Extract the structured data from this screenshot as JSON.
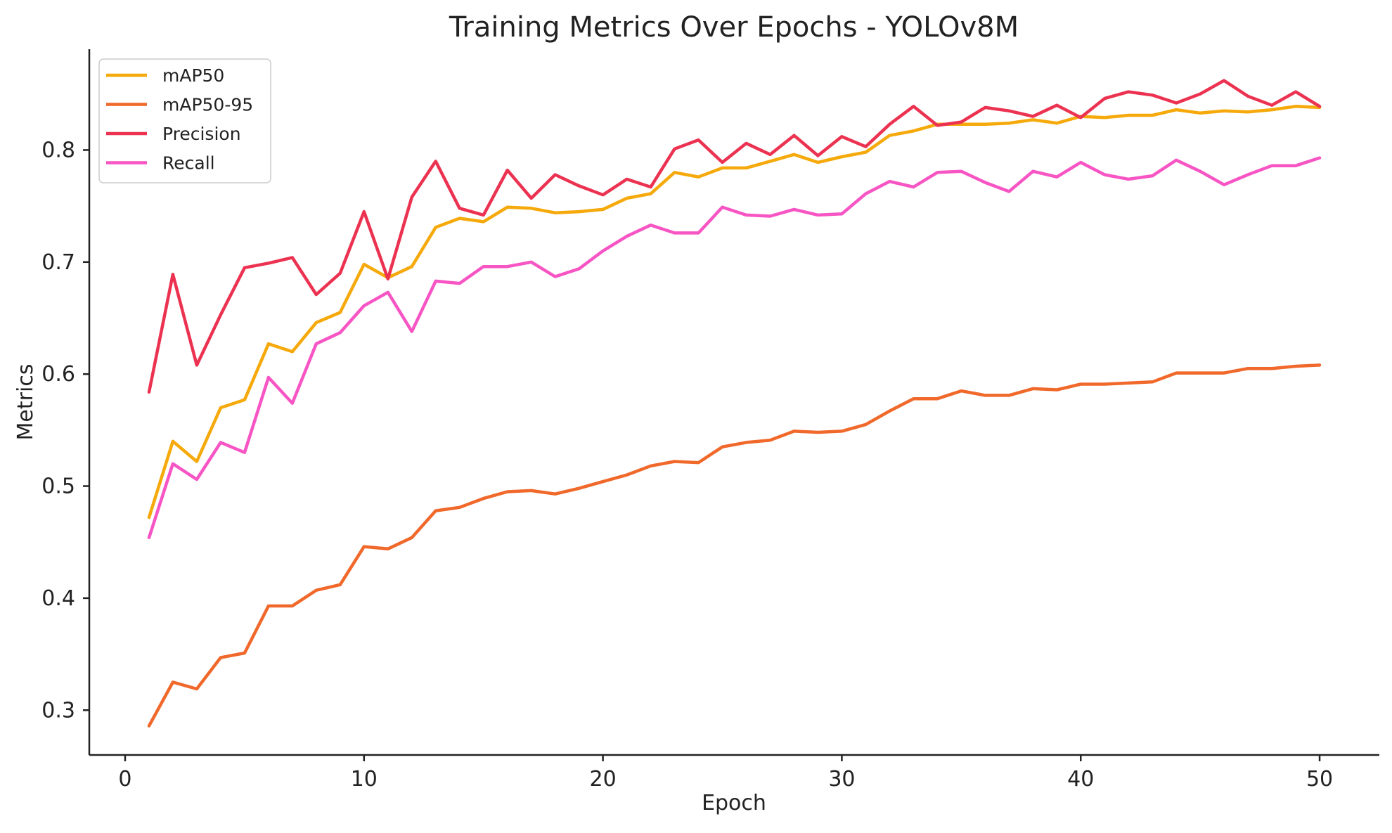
{
  "chart_data": {
    "type": "line",
    "title": "Training Metrics Over Epochs - YOLOv8M",
    "xlabel": "Epoch",
    "ylabel": "Metrics",
    "xlim": [
      -1.5,
      52.5
    ],
    "ylim": [
      0.26,
      0.89
    ],
    "xticks": [
      0,
      10,
      20,
      30,
      40,
      50
    ],
    "xtick_labels": [
      "0",
      "10",
      "20",
      "30",
      "40",
      "50"
    ],
    "yticks": [
      0.3,
      0.4,
      0.5,
      0.6,
      0.7,
      0.8
    ],
    "ytick_labels": [
      "0.3",
      "0.4",
      "0.5",
      "0.6",
      "0.7",
      "0.8"
    ],
    "grid": false,
    "legend_position": "top-left",
    "x": [
      1,
      2,
      3,
      4,
      5,
      6,
      7,
      8,
      9,
      10,
      11,
      12,
      13,
      14,
      15,
      16,
      17,
      18,
      19,
      20,
      21,
      22,
      23,
      24,
      25,
      26,
      27,
      28,
      29,
      30,
      31,
      32,
      33,
      34,
      35,
      36,
      37,
      38,
      39,
      40,
      41,
      42,
      43,
      44,
      45,
      46,
      47,
      48,
      49,
      50
    ],
    "series": [
      {
        "name": "mAP50",
        "color": "#f5a90b",
        "values": [
          0.472,
          0.54,
          0.522,
          0.57,
          0.577,
          0.627,
          0.62,
          0.646,
          0.655,
          0.698,
          0.686,
          0.696,
          0.731,
          0.739,
          0.736,
          0.749,
          0.748,
          0.744,
          0.745,
          0.747,
          0.757,
          0.761,
          0.78,
          0.776,
          0.784,
          0.784,
          0.79,
          0.796,
          0.789,
          0.794,
          0.798,
          0.813,
          0.817,
          0.823,
          0.823,
          0.823,
          0.824,
          0.827,
          0.824,
          0.83,
          0.829,
          0.831,
          0.831,
          0.836,
          0.833,
          0.835,
          0.834,
          0.836,
          0.839,
          0.838
        ]
      },
      {
        "name": "mAP50-95",
        "color": "#f0682a",
        "values": [
          0.286,
          0.325,
          0.319,
          0.347,
          0.351,
          0.393,
          0.393,
          0.407,
          0.412,
          0.446,
          0.444,
          0.454,
          0.478,
          0.481,
          0.489,
          0.495,
          0.496,
          0.493,
          0.498,
          0.504,
          0.51,
          0.518,
          0.522,
          0.521,
          0.535,
          0.539,
          0.541,
          0.549,
          0.548,
          0.549,
          0.555,
          0.567,
          0.578,
          0.578,
          0.585,
          0.581,
          0.581,
          0.587,
          0.586,
          0.591,
          0.591,
          0.592,
          0.593,
          0.601,
          0.601,
          0.601,
          0.605,
          0.605,
          0.607,
          0.608
        ]
      },
      {
        "name": "Precision",
        "color": "#ec3251",
        "values": [
          0.584,
          0.689,
          0.608,
          0.653,
          0.695,
          0.699,
          0.704,
          0.671,
          0.69,
          0.745,
          0.685,
          0.758,
          0.79,
          0.748,
          0.742,
          0.782,
          0.757,
          0.778,
          0.768,
          0.76,
          0.774,
          0.767,
          0.801,
          0.809,
          0.789,
          0.806,
          0.796,
          0.813,
          0.795,
          0.812,
          0.803,
          0.823,
          0.839,
          0.822,
          0.825,
          0.838,
          0.835,
          0.83,
          0.84,
          0.829,
          0.846,
          0.852,
          0.849,
          0.842,
          0.85,
          0.862,
          0.848,
          0.84,
          0.852,
          0.839
        ]
      },
      {
        "name": "Recall",
        "color": "#f755c4",
        "values": [
          0.454,
          0.52,
          0.506,
          0.539,
          0.53,
          0.597,
          0.574,
          0.627,
          0.637,
          0.661,
          0.673,
          0.638,
          0.683,
          0.681,
          0.696,
          0.696,
          0.7,
          0.687,
          0.694,
          0.71,
          0.723,
          0.733,
          0.726,
          0.726,
          0.749,
          0.742,
          0.741,
          0.747,
          0.742,
          0.743,
          0.761,
          0.772,
          0.767,
          0.78,
          0.781,
          0.771,
          0.763,
          0.781,
          0.776,
          0.789,
          0.778,
          0.774,
          0.777,
          0.791,
          0.781,
          0.769,
          0.778,
          0.786,
          0.786,
          0.793
        ]
      }
    ]
  }
}
